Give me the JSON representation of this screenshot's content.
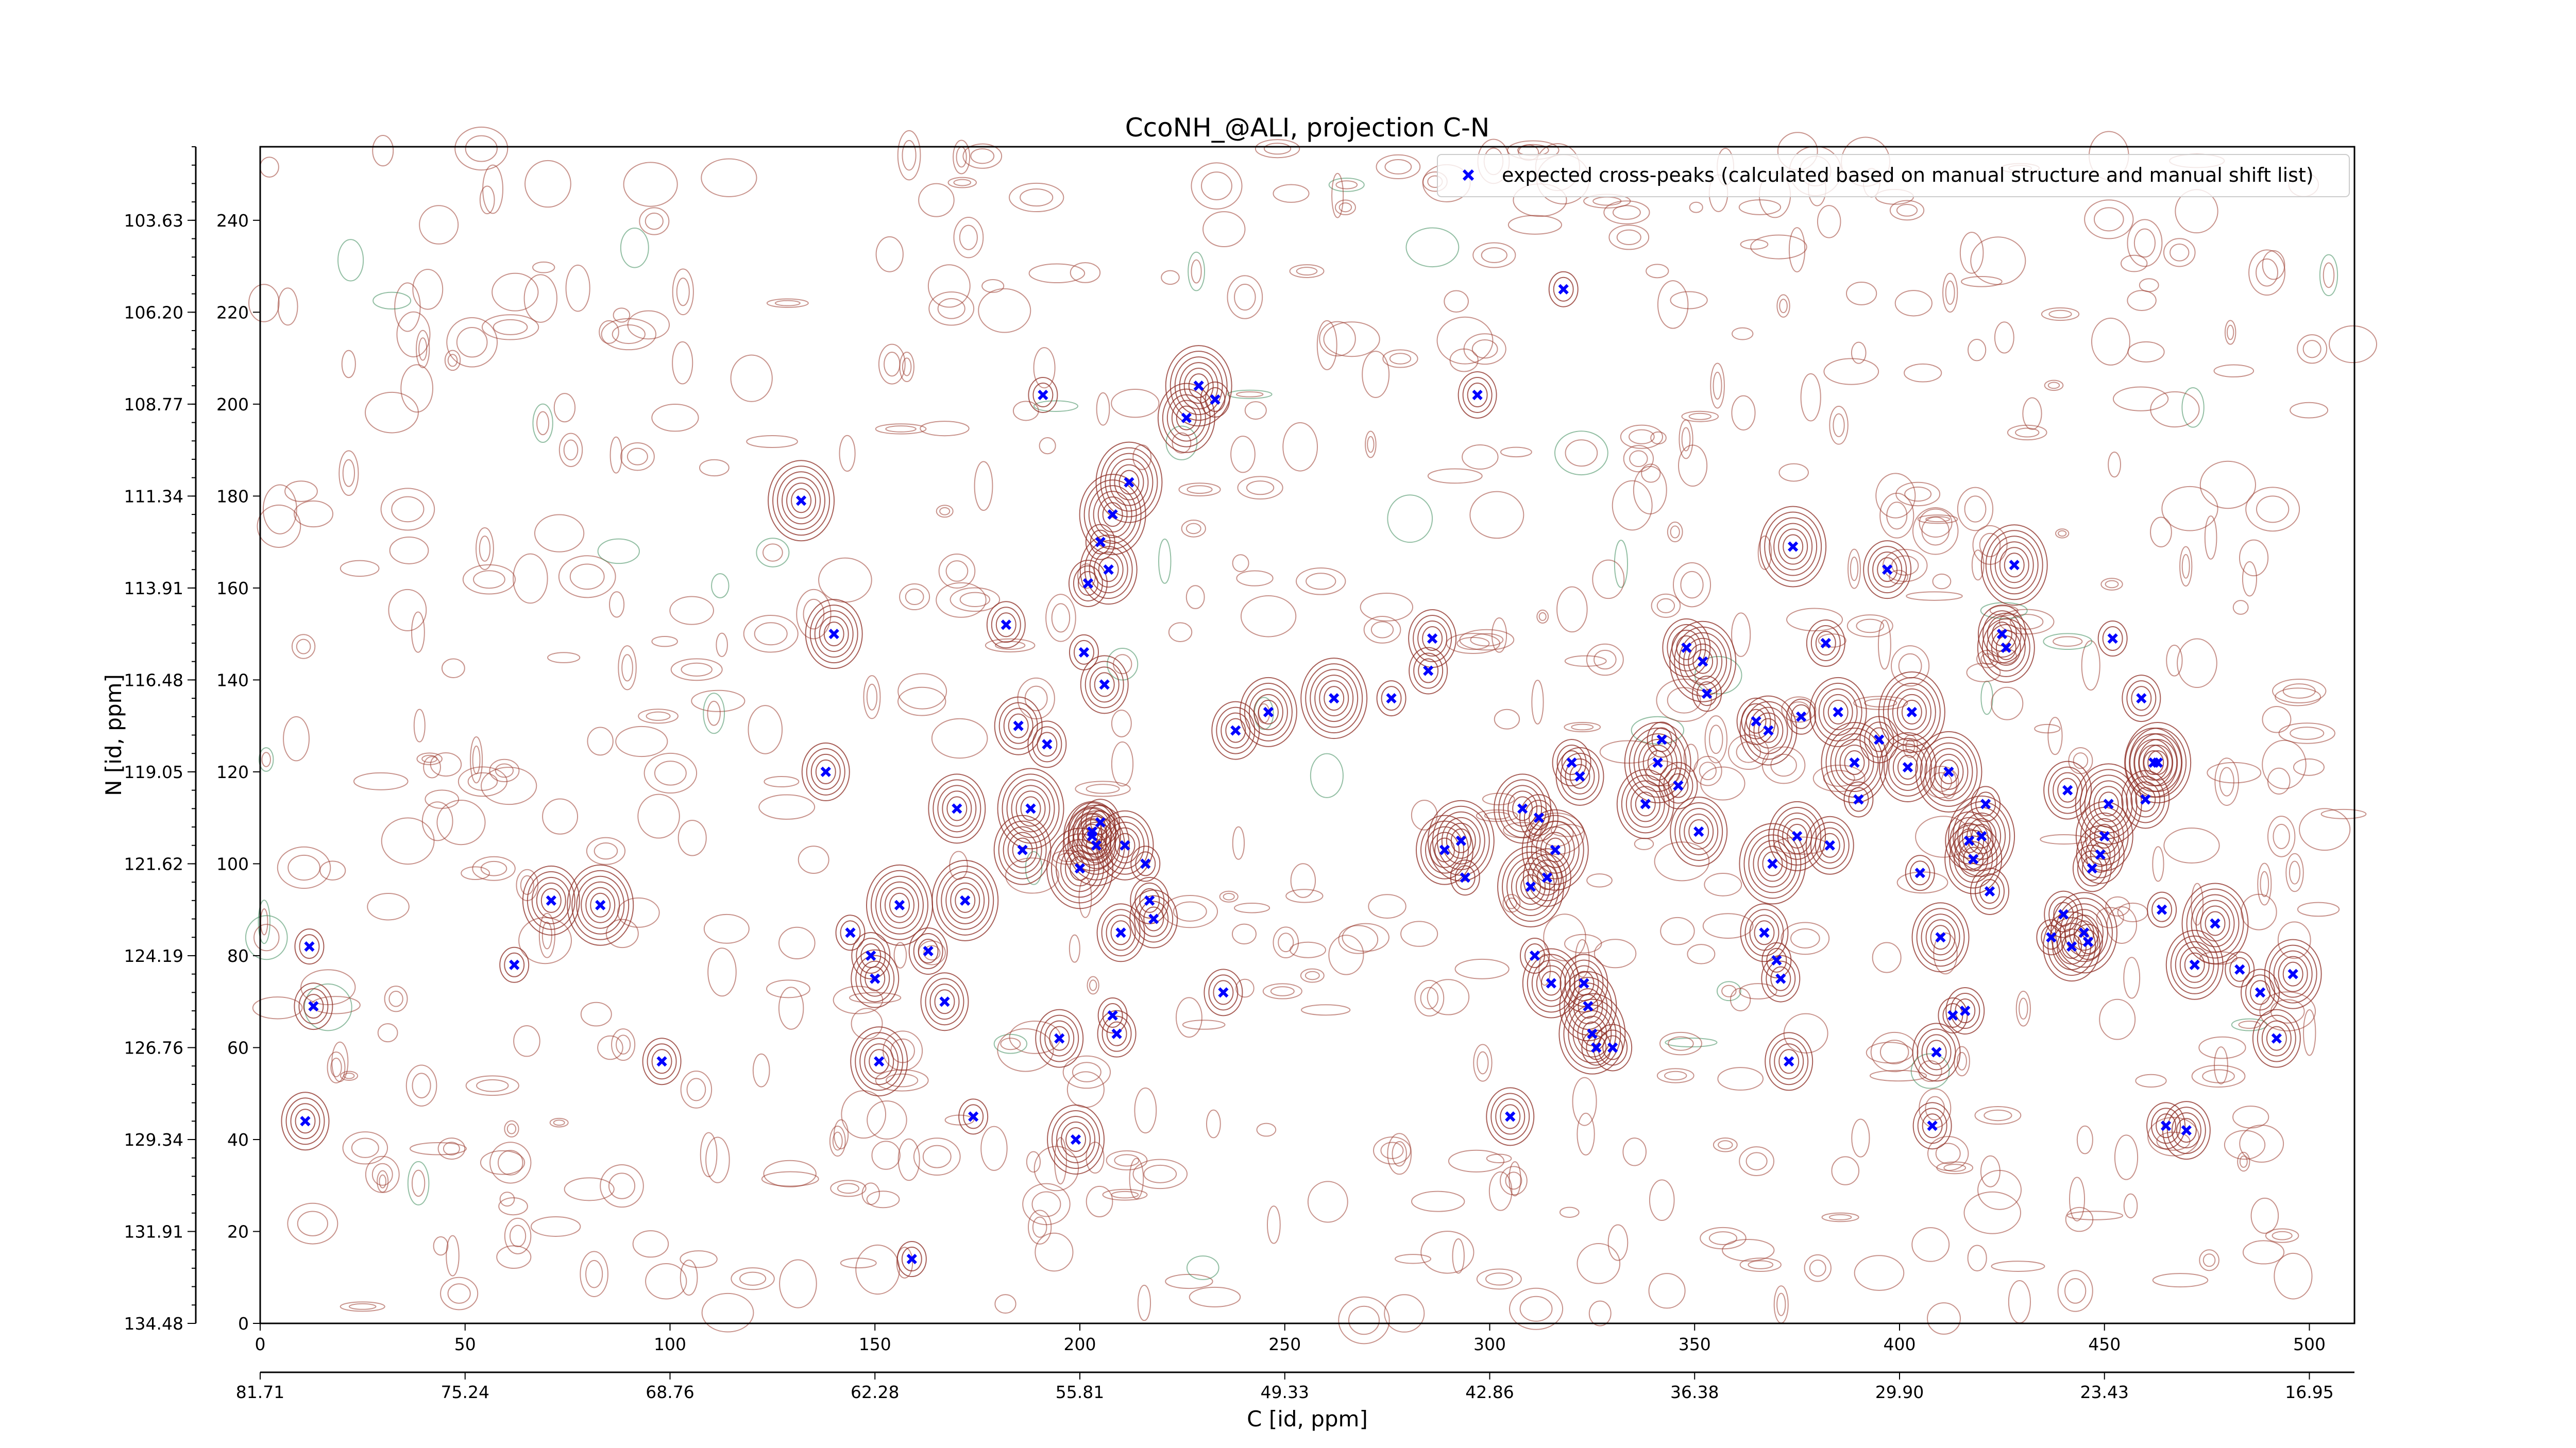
{
  "chart_data": {
    "type": "scatter",
    "title": "CcoNH_@ALI, projection C-N",
    "xlabel": "C [id, ppm]",
    "ylabel": "N [id, ppm]",
    "xlim": [
      0,
      511
    ],
    "ylim": [
      0,
      256
    ],
    "x_ticks": [
      0,
      50,
      100,
      150,
      200,
      250,
      300,
      350,
      400,
      450,
      500
    ],
    "x_ppm_ticks": [
      "81.71",
      "75.24",
      "68.76",
      "62.28",
      "55.81",
      "49.33",
      "42.86",
      "36.38",
      "29.90",
      "23.43",
      "16.95"
    ],
    "y_ticks": [
      0,
      20,
      40,
      60,
      80,
      100,
      120,
      140,
      160,
      180,
      200,
      220,
      240
    ],
    "y_ppm_ticks": [
      "134.48",
      "131.91",
      "129.34",
      "126.76",
      "124.19",
      "121.62",
      "119.05",
      "116.48",
      "113.91",
      "111.34",
      "108.77",
      "106.20",
      "103.63"
    ],
    "grid": false,
    "legend_position": "top-right",
    "series": [
      {
        "name": "expected cross-peaks (calculated based on manual structure and manual shift list)",
        "color": "#0000ff",
        "marker": "x",
        "x": [
          12,
          13,
          11,
          71,
          83,
          62,
          98,
          138,
          140,
          132,
          144,
          149,
          150,
          151,
          156,
          159,
          163,
          167,
          170,
          172,
          174,
          182,
          185,
          186,
          188,
          191,
          192,
          195,
          199,
          200,
          201,
          202,
          203,
          203,
          204,
          205,
          205,
          206,
          207,
          208,
          208,
          209,
          210,
          211,
          212,
          216,
          217,
          218,
          226,
          229,
          233,
          235,
          238,
          246,
          262,
          276,
          285,
          286,
          289,
          293,
          294,
          297,
          305,
          308,
          310,
          311,
          312,
          314,
          315,
          316,
          318,
          320,
          322,
          324,
          325,
          326,
          330,
          323,
          338,
          341,
          342,
          346,
          348,
          351,
          352,
          353,
          365,
          367,
          368,
          369,
          370,
          371,
          373,
          375,
          374,
          376,
          382,
          383,
          385,
          389,
          390,
          395,
          397,
          402,
          403,
          405,
          408,
          409,
          410,
          412,
          413,
          416,
          417,
          418,
          420,
          421,
          422,
          425,
          426,
          428,
          437,
          440,
          441,
          442,
          445,
          446,
          447,
          449,
          450,
          451,
          452,
          459,
          460,
          462,
          463,
          464,
          465,
          470,
          472,
          477,
          483,
          488,
          492,
          496
        ],
        "y": [
          82,
          69,
          44,
          92,
          91,
          78,
          57,
          120,
          150,
          179,
          85,
          80,
          75,
          57,
          91,
          14,
          81,
          70,
          112,
          92,
          45,
          152,
          130,
          103,
          112,
          202,
          126,
          62,
          40,
          99,
          146,
          161,
          107,
          106,
          104,
          170,
          109,
          139,
          164,
          176,
          67,
          63,
          85,
          104,
          183,
          100,
          92,
          88,
          197,
          204,
          201,
          72,
          129,
          133,
          136,
          136,
          142,
          149,
          103,
          105,
          97,
          202,
          45,
          112,
          95,
          80,
          110,
          97,
          74,
          103,
          225,
          122,
          119,
          69,
          63,
          60,
          60,
          74,
          113,
          122,
          127,
          117,
          147,
          107,
          144,
          137,
          131,
          85,
          129,
          100,
          79,
          75,
          57,
          106,
          169,
          132,
          148,
          104,
          133,
          122,
          114,
          127,
          164,
          121,
          133,
          98,
          43,
          59,
          84,
          120,
          67,
          68,
          105,
          101,
          106,
          113,
          94,
          150,
          147,
          165,
          84,
          89,
          116,
          82,
          85,
          83,
          99,
          102,
          106,
          113,
          149,
          136,
          114,
          122,
          122,
          90,
          43,
          42,
          78,
          87,
          77,
          72,
          62,
          76
        ],
        "note": ""
      }
    ]
  }
}
